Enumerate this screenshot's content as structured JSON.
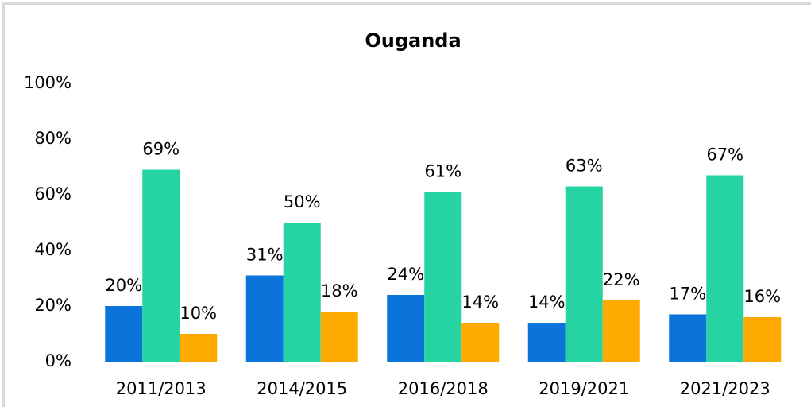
{
  "chart_data": {
    "type": "bar",
    "title": "Ouganda",
    "categories": [
      "2011/2013",
      "2014/2015",
      "2016/2018",
      "2019/2021",
      "2021/2023"
    ],
    "series": [
      {
        "color": "#0a74da",
        "values": [
          20,
          31,
          24,
          14,
          17
        ],
        "value_labels": [
          "20%",
          "31%",
          "24%",
          "14%",
          "17%"
        ]
      },
      {
        "color": "#26d3a2",
        "values": [
          69,
          50,
          61,
          63,
          67
        ],
        "value_labels": [
          "69%",
          "50%",
          "61%",
          "63%",
          "67%"
        ]
      },
      {
        "color": "#ffaa00",
        "values": [
          10,
          18,
          14,
          22,
          16
        ],
        "value_labels": [
          "10%",
          "18%",
          "14%",
          "22%",
          "16%"
        ]
      }
    ],
    "ylim": [
      0,
      100
    ],
    "yticks": [
      {
        "value": 0,
        "label": "0%"
      },
      {
        "value": 20,
        "label": "20%"
      },
      {
        "value": 40,
        "label": "40%"
      },
      {
        "value": 60,
        "label": "60%"
      },
      {
        "value": 80,
        "label": "80%"
      },
      {
        "value": 100,
        "label": "100%"
      }
    ],
    "grid": false
  }
}
